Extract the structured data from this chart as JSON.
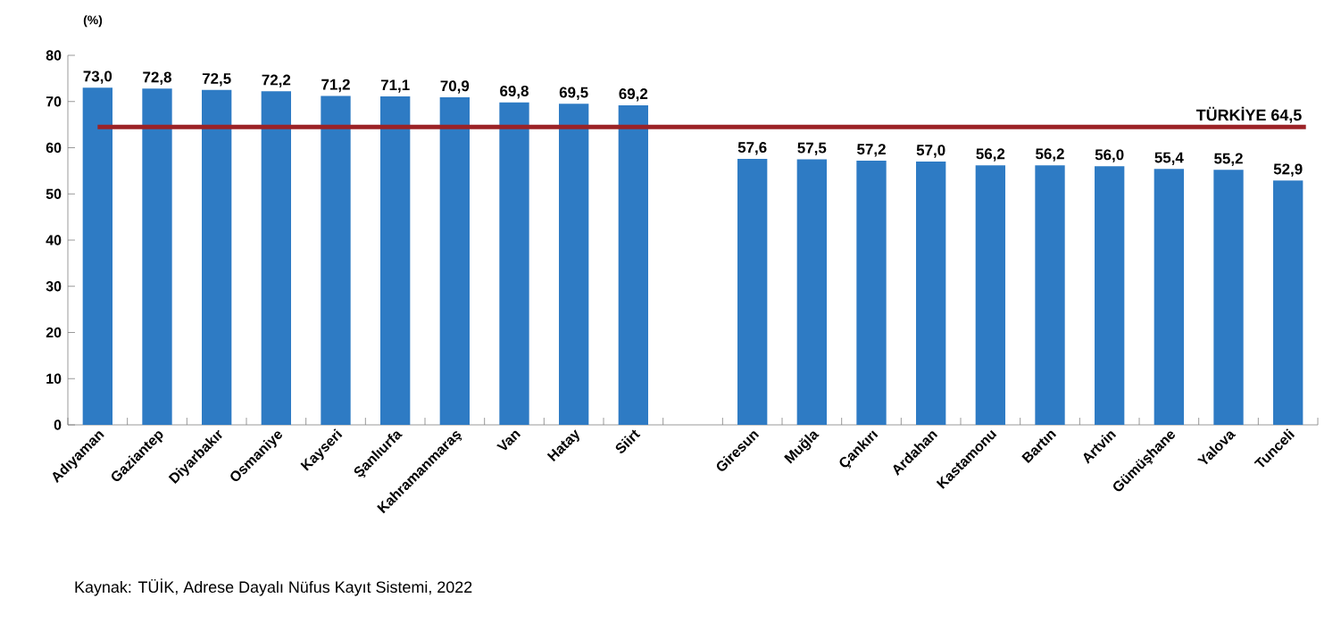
{
  "chart_data": {
    "type": "bar",
    "ylabel": "(%)",
    "categories": [
      "Adıyaman",
      "Gaziantep",
      "Diyarbakır",
      "Osmaniye",
      "Kayseri",
      "Şanlıurfa",
      "Kahramanmaraş",
      "Van",
      "Hatay",
      "Siirt",
      null,
      "Giresun",
      "Muğla",
      "Çankırı",
      "Ardahan",
      "Kastamonu",
      "Bartın",
      "Artvin",
      "Gümüşhane",
      "Yalova",
      "Tunceli"
    ],
    "values": [
      73.0,
      72.8,
      72.5,
      72.2,
      71.2,
      71.1,
      70.9,
      69.8,
      69.5,
      69.2,
      null,
      57.6,
      57.5,
      57.2,
      57.0,
      56.2,
      56.2,
      56.0,
      55.4,
      55.2,
      52.9
    ],
    "value_labels": [
      "73,0",
      "72,8",
      "72,5",
      "72,2",
      "71,2",
      "71,1",
      "70,9",
      "69,8",
      "69,5",
      "69,2",
      null,
      "57,6",
      "57,5",
      "57,2",
      "57,0",
      "56,2",
      "56,2",
      "56,0",
      "55,4",
      "55,2",
      "52,9"
    ],
    "color": "#2e7bc4",
    "ylim": [
      0,
      80
    ],
    "yticks": [
      0,
      10,
      20,
      30,
      40,
      50,
      60,
      70,
      80
    ],
    "ref_lines": [
      {
        "axis": "y",
        "value": 64.5,
        "label": "TÜRKİYE  64,5",
        "color": "#9b2226"
      }
    ],
    "annotations": [
      "Kaynak: TÜİK, Adrese Dayalı Nüfus Kayıt Sistemi, 2022"
    ]
  }
}
